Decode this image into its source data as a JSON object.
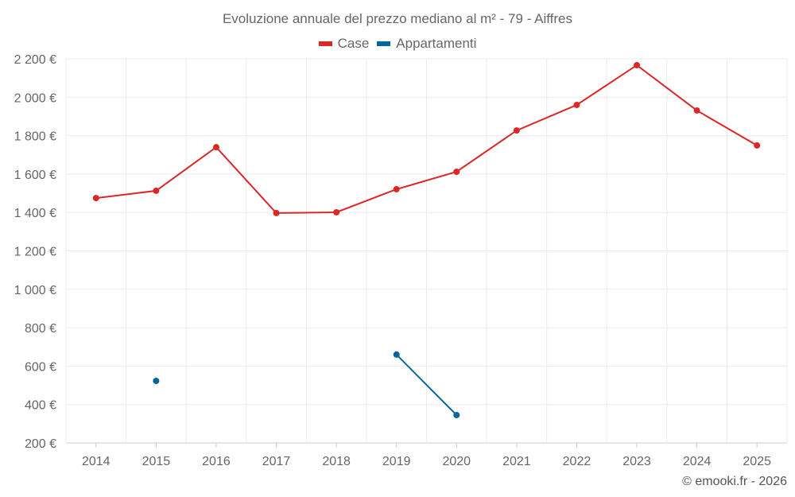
{
  "chart_data": {
    "type": "line",
    "title": "Evoluzione annuale del prezzo mediano al m² - 79 - Aiffres",
    "xlabel": "",
    "ylabel": "",
    "categories": [
      "2014",
      "2015",
      "2016",
      "2017",
      "2018",
      "2019",
      "2020",
      "2021",
      "2022",
      "2023",
      "2024",
      "2025"
    ],
    "ylim": [
      200,
      2200
    ],
    "yticks": [
      200,
      400,
      600,
      800,
      1000,
      1200,
      1400,
      1600,
      1800,
      2000,
      2200
    ],
    "ytick_labels": [
      "200 €",
      "400 €",
      "600 €",
      "800 €",
      "1 000 €",
      "1 200 €",
      "1 400 €",
      "1 600 €",
      "1 800 €",
      "2 000 €",
      "2 200 €"
    ],
    "grid": true,
    "legend_position": "top-center",
    "series": [
      {
        "name": "Case",
        "color": "#dd2626",
        "values": [
          1475,
          1513,
          1740,
          1397,
          1401,
          1521,
          1612,
          1827,
          1960,
          2167,
          1931,
          1749
        ]
      },
      {
        "name": "Appartamenti",
        "color": "#04669b",
        "values": [
          null,
          523,
          null,
          null,
          null,
          660,
          345,
          null,
          null,
          null,
          null,
          null
        ]
      }
    ]
  },
  "credit": "© emooki.fr - 2026"
}
